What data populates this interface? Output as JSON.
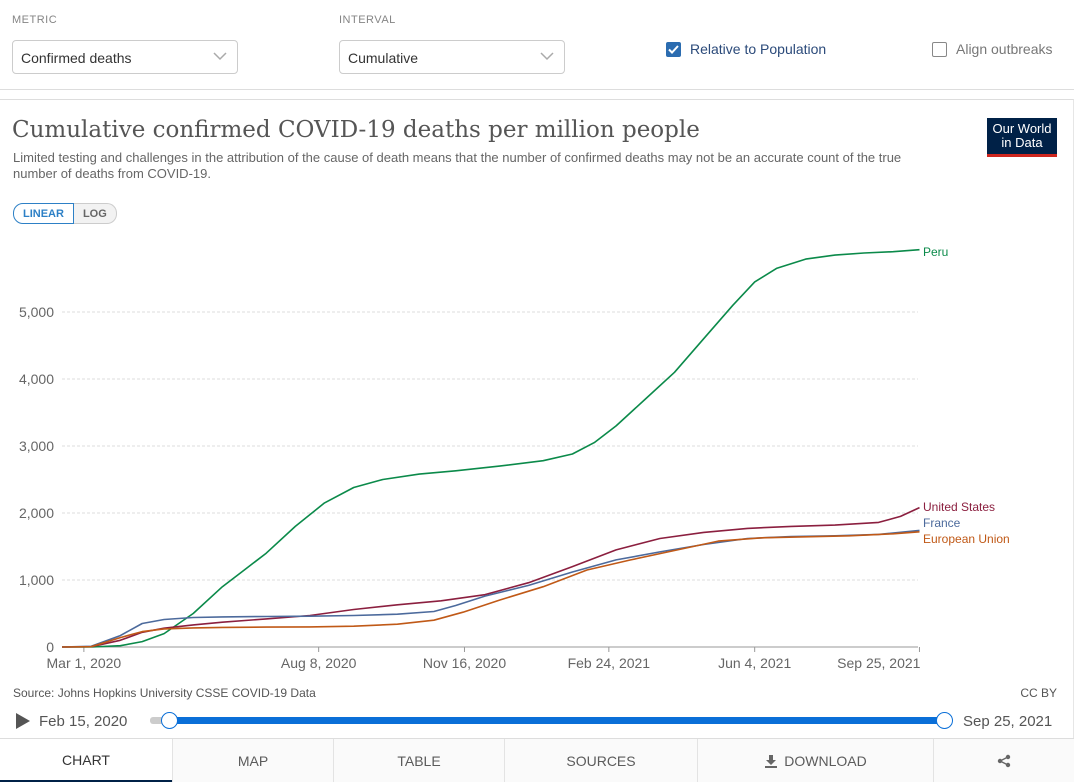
{
  "controls": {
    "metric_label": "METRIC",
    "metric_value": "Confirmed deaths",
    "interval_label": "INTERVAL",
    "interval_value": "Cumulative",
    "relative_label": "Relative to Population",
    "relative_checked": true,
    "align_label": "Align outbreaks",
    "align_checked": false
  },
  "header": {
    "title": "Cumulative confirmed COVID-19 deaths per million people",
    "subtitle": "Limited testing and challenges in the attribution of the cause of death means that the number of confirmed deaths may not be an accurate count of the true number of deaths from COVID-19.",
    "logo_line1": "Our World",
    "logo_line2": "in Data"
  },
  "scale": {
    "linear": "LINEAR",
    "log": "LOG",
    "active": "LINEAR"
  },
  "chart_data": {
    "type": "line",
    "title": "Cumulative confirmed COVID-19 deaths per million people",
    "xlabel": "",
    "ylabel": "",
    "ylim": [
      0,
      6000
    ],
    "yticks": [
      0,
      1000,
      2000,
      3000,
      4000,
      5000
    ],
    "ytick_labels": [
      "0",
      "1,000",
      "2,000",
      "3,000",
      "4,000",
      "5,000"
    ],
    "xrange": [
      0,
      587
    ],
    "xticks": [
      15,
      176,
      276,
      375,
      475,
      588
    ],
    "xtick_labels": [
      "Mar 1, 2020",
      "Aug 8, 2020",
      "Nov 16, 2020",
      "Feb 24, 2021",
      "Jun 4, 2021",
      "Sep 25, 2021"
    ],
    "x_unit": "days since Feb 15, 2020",
    "legend": "line-end labels",
    "series": [
      {
        "name": "Peru",
        "color": "#0b8a4a",
        "x": [
          0,
          20,
          40,
          55,
          70,
          90,
          110,
          125,
          140,
          160,
          180,
          200,
          220,
          245,
          270,
          300,
          330,
          350,
          365,
          380,
          400,
          420,
          440,
          460,
          475,
          490,
          510,
          530,
          550,
          570,
          588
        ],
        "y": [
          0,
          0,
          20,
          80,
          200,
          500,
          900,
          1150,
          1400,
          1800,
          2150,
          2380,
          2500,
          2580,
          2630,
          2700,
          2780,
          2880,
          3050,
          3300,
          3700,
          4100,
          4600,
          5100,
          5450,
          5650,
          5790,
          5850,
          5880,
          5900,
          5930
        ]
      },
      {
        "name": "United States",
        "color": "#8b1f3f",
        "x": [
          0,
          20,
          40,
          55,
          70,
          90,
          110,
          140,
          170,
          200,
          230,
          260,
          290,
          320,
          350,
          380,
          410,
          440,
          470,
          500,
          530,
          560,
          575,
          588
        ],
        "y": [
          0,
          5,
          100,
          220,
          280,
          330,
          370,
          420,
          470,
          560,
          630,
          690,
          780,
          960,
          1200,
          1450,
          1620,
          1710,
          1770,
          1800,
          1820,
          1860,
          1950,
          2080
        ]
      },
      {
        "name": "France",
        "color": "#4c6a9c",
        "x": [
          0,
          20,
          40,
          55,
          70,
          90,
          110,
          140,
          170,
          200,
          230,
          255,
          270,
          290,
          320,
          350,
          380,
          410,
          440,
          470,
          500,
          530,
          560,
          588
        ],
        "y": [
          0,
          10,
          170,
          350,
          410,
          440,
          450,
          455,
          460,
          470,
          490,
          530,
          620,
          760,
          920,
          1120,
          1300,
          1420,
          1530,
          1620,
          1650,
          1660,
          1680,
          1740
        ]
      },
      {
        "name": "European Union",
        "color": "#c05917",
        "x": [
          0,
          20,
          40,
          55,
          70,
          90,
          110,
          140,
          170,
          200,
          230,
          255,
          275,
          300,
          330,
          360,
          390,
          420,
          450,
          480,
          510,
          540,
          570,
          588
        ],
        "y": [
          0,
          5,
          140,
          230,
          270,
          285,
          292,
          297,
          300,
          310,
          340,
          400,
          520,
          700,
          900,
          1150,
          1300,
          1440,
          1580,
          1630,
          1645,
          1660,
          1690,
          1720
        ]
      }
    ]
  },
  "footer": {
    "source": "Source: Johns Hopkins University CSSE COVID-19 Data",
    "license": "CC BY"
  },
  "timeline": {
    "start_date": "Feb 15, 2020",
    "end_date": "Sep 25, 2021",
    "accent": "#0a6fd8"
  },
  "tabs": [
    "CHART",
    "MAP",
    "TABLE",
    "SOURCES",
    "DOWNLOAD"
  ],
  "colors": {
    "brand": "#002147",
    "brand_accent": "#ce261e",
    "link": "#2d80c6"
  }
}
